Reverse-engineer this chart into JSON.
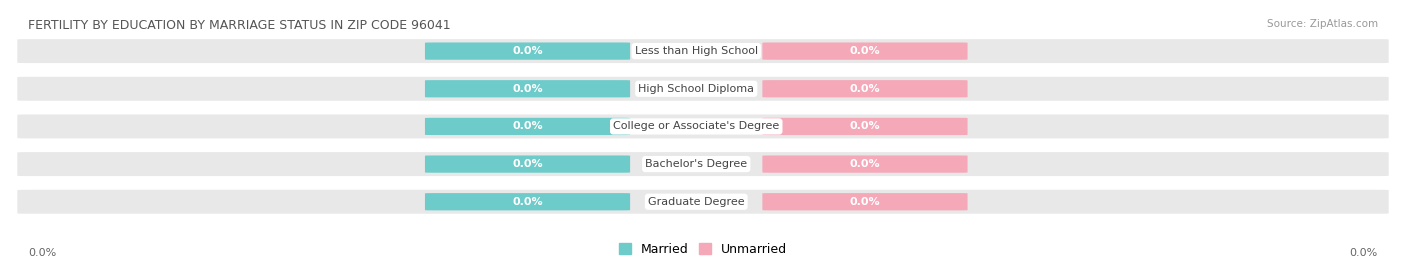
{
  "title": "FERTILITY BY EDUCATION BY MARRIAGE STATUS IN ZIP CODE 96041",
  "source": "Source: ZipAtlas.com",
  "categories": [
    "Less than High School",
    "High School Diploma",
    "College or Associate's Degree",
    "Bachelor's Degree",
    "Graduate Degree"
  ],
  "married_values": [
    0.0,
    0.0,
    0.0,
    0.0,
    0.0
  ],
  "unmarried_values": [
    0.0,
    0.0,
    0.0,
    0.0,
    0.0
  ],
  "married_color": "#6DCBCA",
  "unmarried_color": "#F4A8B8",
  "bar_bg_color": "#E8E8E8",
  "value_text_color": "#FFFFFF",
  "category_text_color": "#444444",
  "title_color": "#555555",
  "source_color": "#999999",
  "background_color": "#FFFFFF",
  "legend_married": "Married",
  "legend_unmarried": "Unmarried",
  "x_tick_label_left": "0.0%",
  "x_tick_label_right": "0.0%"
}
